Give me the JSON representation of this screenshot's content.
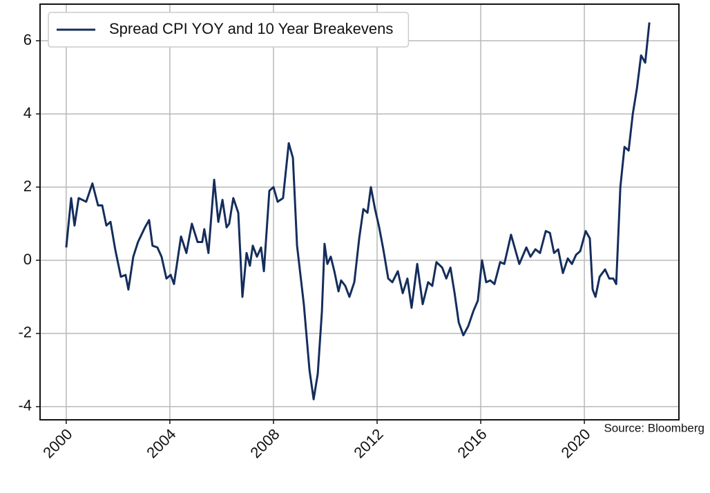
{
  "chart_data": {
    "type": "line",
    "x": [
      2000.0,
      2000.19,
      2000.32,
      2000.48,
      2000.77,
      2001.01,
      2001.23,
      2001.39,
      2001.55,
      2001.71,
      2001.89,
      2002.11,
      2002.29,
      2002.4,
      2002.59,
      2002.77,
      2003.04,
      2003.2,
      2003.33,
      2003.52,
      2003.68,
      2003.87,
      2004.03,
      2004.16,
      2004.43,
      2004.64,
      2004.85,
      2005.07,
      2005.25,
      2005.33,
      2005.49,
      2005.71,
      2005.87,
      2006.03,
      2006.19,
      2006.29,
      2006.45,
      2006.64,
      2006.8,
      2006.96,
      2007.09,
      2007.2,
      2007.36,
      2007.52,
      2007.63,
      2007.84,
      2008.0,
      2008.16,
      2008.37,
      2008.59,
      2008.75,
      2008.91,
      2009.17,
      2009.39,
      2009.55,
      2009.71,
      2009.87,
      2009.97,
      2010.08,
      2010.21,
      2010.35,
      2010.51,
      2010.61,
      2010.77,
      2010.93,
      2011.12,
      2011.31,
      2011.47,
      2011.63,
      2011.76,
      2011.92,
      2012.08,
      2012.24,
      2012.43,
      2012.59,
      2012.8,
      2012.99,
      2013.17,
      2013.33,
      2013.55,
      2013.76,
      2013.97,
      2014.13,
      2014.29,
      2014.51,
      2014.67,
      2014.83,
      2014.99,
      2015.15,
      2015.33,
      2015.52,
      2015.71,
      2015.89,
      2016.05,
      2016.21,
      2016.37,
      2016.53,
      2016.75,
      2016.91,
      2017.17,
      2017.33,
      2017.49,
      2017.76,
      2017.92,
      2018.11,
      2018.29,
      2018.51,
      2018.67,
      2018.83,
      2018.99,
      2019.17,
      2019.36,
      2019.52,
      2019.68,
      2019.84,
      2020.05,
      2020.21,
      2020.32,
      2020.43,
      2020.59,
      2020.8,
      2020.96,
      2021.12,
      2021.23,
      2021.39,
      2021.55,
      2021.71,
      2021.87,
      2022.03,
      2022.19,
      2022.35,
      2022.51
    ],
    "series": [
      {
        "name": "Spread CPI YOY and 10 Year Breakevens",
        "color": "#142d5c",
        "values": [
          0.35,
          1.7,
          0.95,
          1.7,
          1.6,
          2.1,
          1.5,
          1.5,
          0.95,
          1.05,
          0.3,
          -0.45,
          -0.4,
          -0.8,
          0.1,
          0.5,
          0.9,
          1.1,
          0.4,
          0.35,
          0.1,
          -0.5,
          -0.4,
          -0.65,
          0.65,
          0.2,
          1.0,
          0.5,
          0.5,
          0.85,
          0.2,
          2.2,
          1.05,
          1.65,
          0.9,
          1.0,
          1.7,
          1.3,
          -1.0,
          0.2,
          -0.15,
          0.4,
          0.1,
          0.35,
          -0.3,
          1.9,
          2.0,
          1.6,
          1.7,
          3.2,
          2.8,
          0.4,
          -1.2,
          -3.0,
          -3.8,
          -3.1,
          -1.4,
          0.45,
          -0.1,
          0.1,
          -0.3,
          -0.85,
          -0.55,
          -0.7,
          -1.0,
          -0.6,
          0.6,
          1.4,
          1.3,
          2.0,
          1.4,
          0.9,
          0.3,
          -0.5,
          -0.6,
          -0.3,
          -0.9,
          -0.5,
          -1.3,
          -0.1,
          -1.2,
          -0.6,
          -0.7,
          -0.05,
          -0.2,
          -0.5,
          -0.2,
          -0.9,
          -1.7,
          -2.05,
          -1.8,
          -1.4,
          -1.1,
          0.0,
          -0.6,
          -0.55,
          -0.65,
          -0.05,
          -0.1,
          0.7,
          0.3,
          -0.1,
          0.35,
          0.1,
          0.3,
          0.2,
          0.8,
          0.75,
          0.2,
          0.3,
          -0.35,
          0.05,
          -0.1,
          0.15,
          0.25,
          0.8,
          0.6,
          -0.8,
          -1.0,
          -0.45,
          -0.25,
          -0.5,
          -0.5,
          -0.65,
          2.0,
          3.1,
          3.0,
          4.0,
          4.7,
          5.6,
          5.4,
          6.5
        ]
      }
    ],
    "xlim": [
      1998.99,
      2023.65
    ],
    "xticks": [
      2000,
      2004,
      2008,
      2012,
      2016,
      2020
    ],
    "ylim": [
      -4.36,
      7.0
    ],
    "yticks": [
      -4,
      -2,
      0,
      2,
      4,
      6
    ],
    "grid": true,
    "legend": "upper left",
    "annotations": [
      "Source: Bloomberg"
    ]
  }
}
